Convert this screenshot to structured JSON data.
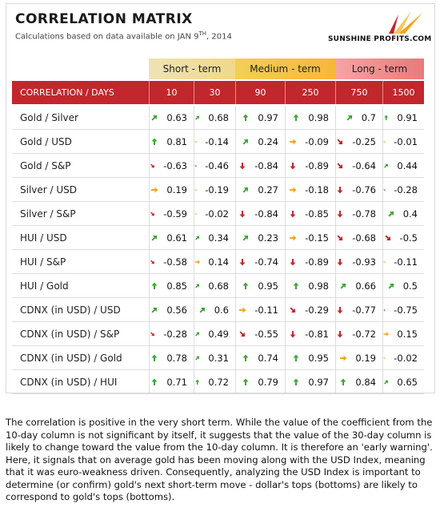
{
  "title": "CORRELATION MATRIX",
  "subtitle_prefix": "Calculations based on data available on  JAN 9",
  "subtitle_sup": "TH",
  "subtitle_suffix": ", 2014",
  "logo_text": "SUNSHINE PROFITS.COM",
  "groups": [
    "Short - term",
    "Medium - term",
    "Long - term"
  ],
  "header_label": "CORRELATION / DAYS",
  "columns": [
    "10",
    "30",
    "90",
    "250",
    "750",
    "1500"
  ],
  "arrow_colors": {
    "up": "#3fa535",
    "right": "#f2a51c",
    "down": "#c1272d"
  },
  "rows": [
    {
      "label": "Gold / Silver",
      "cells": [
        {
          "value": "0.63",
          "dir": "up-right"
        },
        {
          "value": "0.68",
          "dir": "up-right"
        },
        {
          "value": "0.97",
          "dir": "up"
        },
        {
          "value": "0.98",
          "dir": "up"
        },
        {
          "value": "0.7",
          "dir": "up-right"
        },
        {
          "value": "0.91",
          "dir": "up"
        }
      ]
    },
    {
      "label": "Gold / USD",
      "cells": [
        {
          "value": "0.81",
          "dir": "up"
        },
        {
          "value": "-0.14",
          "dir": "right"
        },
        {
          "value": "0.24",
          "dir": "up-right"
        },
        {
          "value": "-0.09",
          "dir": "right"
        },
        {
          "value": "-0.25",
          "dir": "down-right"
        },
        {
          "value": "-0.01",
          "dir": "right"
        }
      ]
    },
    {
      "label": "Gold / S&P",
      "cells": [
        {
          "value": "-0.63",
          "dir": "down-right"
        },
        {
          "value": "-0.46",
          "dir": "down-right"
        },
        {
          "value": "-0.84",
          "dir": "down"
        },
        {
          "value": "-0.89",
          "dir": "down"
        },
        {
          "value": "-0.64",
          "dir": "down-right"
        },
        {
          "value": "0.44",
          "dir": "up-right"
        }
      ]
    },
    {
      "label": "Silver / USD",
      "cells": [
        {
          "value": "0.19",
          "dir": "right"
        },
        {
          "value": "-0.19",
          "dir": "right"
        },
        {
          "value": "0.27",
          "dir": "up-right"
        },
        {
          "value": "-0.18",
          "dir": "right"
        },
        {
          "value": "-0.76",
          "dir": "down"
        },
        {
          "value": "-0.28",
          "dir": "down-right"
        }
      ]
    },
    {
      "label": "Silver / S&P",
      "cells": [
        {
          "value": "-0.59",
          "dir": "down-right"
        },
        {
          "value": "-0.02",
          "dir": "right"
        },
        {
          "value": "-0.84",
          "dir": "down"
        },
        {
          "value": "-0.85",
          "dir": "down"
        },
        {
          "value": "-0.78",
          "dir": "down"
        },
        {
          "value": "0.4",
          "dir": "up-right"
        }
      ]
    },
    {
      "label": "HUI / USD",
      "cells": [
        {
          "value": "0.61",
          "dir": "up-right"
        },
        {
          "value": "0.34",
          "dir": "up-right"
        },
        {
          "value": "0.23",
          "dir": "up-right"
        },
        {
          "value": "-0.15",
          "dir": "right"
        },
        {
          "value": "-0.68",
          "dir": "down-right"
        },
        {
          "value": "-0.5",
          "dir": "down-right"
        }
      ]
    },
    {
      "label": "HUI / S&P",
      "cells": [
        {
          "value": "-0.58",
          "dir": "down-right"
        },
        {
          "value": "0.14",
          "dir": "right"
        },
        {
          "value": "-0.74",
          "dir": "down"
        },
        {
          "value": "-0.89",
          "dir": "down"
        },
        {
          "value": "-0.93",
          "dir": "down"
        },
        {
          "value": "-0.11",
          "dir": "right"
        }
      ]
    },
    {
      "label": "HUI / Gold",
      "cells": [
        {
          "value": "0.85",
          "dir": "up"
        },
        {
          "value": "0.68",
          "dir": "up-right"
        },
        {
          "value": "0.95",
          "dir": "up"
        },
        {
          "value": "0.98",
          "dir": "up"
        },
        {
          "value": "0.66",
          "dir": "up-right"
        },
        {
          "value": "0.5",
          "dir": "up-right"
        }
      ]
    },
    {
      "label": "CDNX (in USD) / USD",
      "cells": [
        {
          "value": "0.56",
          "dir": "up-right"
        },
        {
          "value": "0.6",
          "dir": "up-right"
        },
        {
          "value": "-0.11",
          "dir": "right"
        },
        {
          "value": "-0.29",
          "dir": "down-right"
        },
        {
          "value": "-0.77",
          "dir": "down"
        },
        {
          "value": "-0.75",
          "dir": "down"
        }
      ]
    },
    {
      "label": "CDNX (in USD) / S&P",
      "cells": [
        {
          "value": "-0.28",
          "dir": "down-right"
        },
        {
          "value": "0.49",
          "dir": "up-right"
        },
        {
          "value": "-0.55",
          "dir": "down-right"
        },
        {
          "value": "-0.81",
          "dir": "down"
        },
        {
          "value": "-0.72",
          "dir": "down"
        },
        {
          "value": "0.15",
          "dir": "right"
        }
      ]
    },
    {
      "label": "CDNX (in USD) / Gold",
      "cells": [
        {
          "value": "0.78",
          "dir": "up"
        },
        {
          "value": "0.31",
          "dir": "up-right"
        },
        {
          "value": "0.74",
          "dir": "up"
        },
        {
          "value": "0.95",
          "dir": "up"
        },
        {
          "value": "0.19",
          "dir": "right"
        },
        {
          "value": "-0.02",
          "dir": "right"
        }
      ]
    },
    {
      "label": "CDNX (in USD) / HUI",
      "cells": [
        {
          "value": "0.71",
          "dir": "up"
        },
        {
          "value": "0.72",
          "dir": "up"
        },
        {
          "value": "0.79",
          "dir": "up"
        },
        {
          "value": "0.97",
          "dir": "up"
        },
        {
          "value": "0.84",
          "dir": "up"
        },
        {
          "value": "0.65",
          "dir": "up-right"
        }
      ]
    }
  ],
  "commentary": "The correlation is positive in the very short term. While the value of the coefficient from the 10-day column is not significant by itself, it suggests that the value of the 30-day column is likely to change toward the value from the 10-day column. It is therefore an 'early warning'. Here, it signals that on average gold has been moving along with the USD Index, meaning that it was euro-weakness driven. Consequently, analyzing the USD Index is important to determine (or confirm) gold's next short-term move - dollar's tops (bottoms) are likely to correspond to gold's tops (bottoms)."
}
